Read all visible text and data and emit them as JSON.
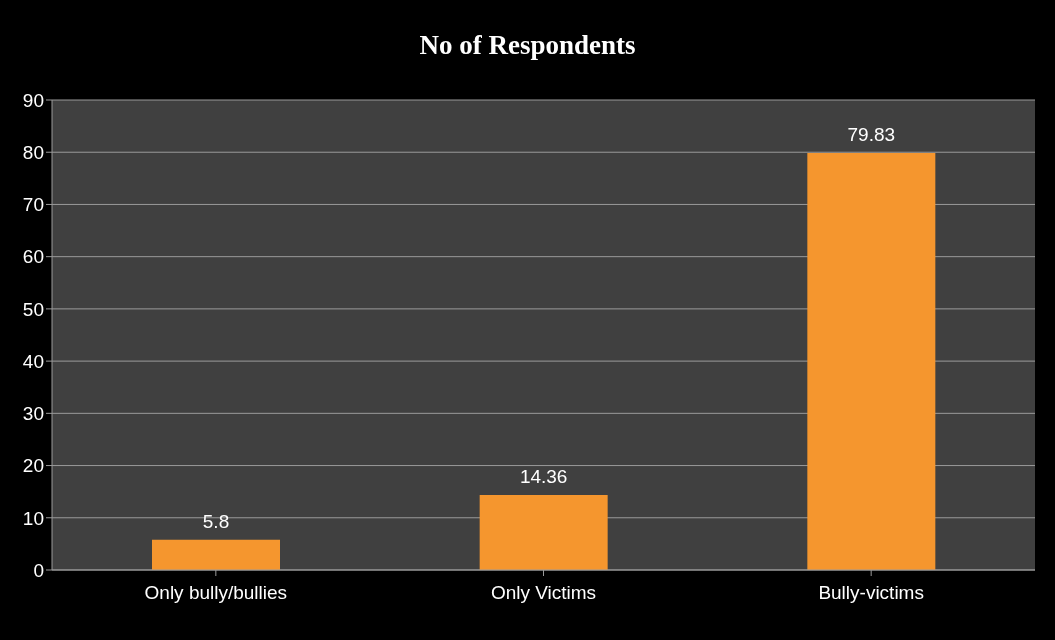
{
  "chart_data": {
    "type": "bar",
    "title": "No of Respondents",
    "categories": [
      "Only bully/bullies",
      "Only Victims",
      "Bully-victims"
    ],
    "values": [
      5.8,
      14.36,
      79.83
    ],
    "color": "#f5962e",
    "ylim": [
      0,
      90
    ],
    "yticks": [
      0,
      10,
      20,
      30,
      40,
      50,
      60,
      70,
      80,
      90
    ],
    "grid": "y",
    "data_labels": true,
    "legend": false
  }
}
